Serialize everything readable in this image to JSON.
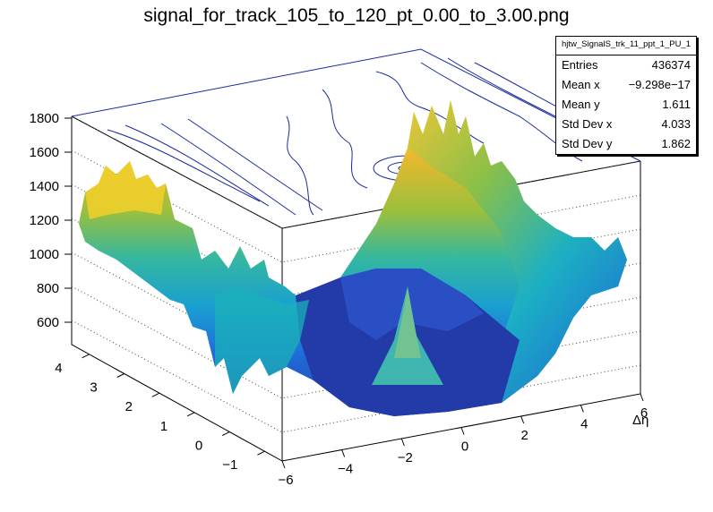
{
  "title": "signal_for_track_105_to_120_pt_0.00_to_3.00.png",
  "stats": {
    "name": "hjtw_SignalS_trk_11_ppt_1_PU_1",
    "rows": [
      {
        "label": "Entries",
        "value": "436374"
      },
      {
        "label": "Mean x",
        "value": "−9.298e−17"
      },
      {
        "label": "Mean y",
        "value": "1.611"
      },
      {
        "label": "Std Dev x",
        "value": "4.033"
      },
      {
        "label": "Std Dev y",
        "value": "1.862"
      }
    ]
  },
  "chart_data": {
    "type": "surface",
    "title": "signal_for_track_105_to_120_pt_0.00_to_3.00.png",
    "xlabel": "Δη",
    "ylabel": "",
    "zlabel": "",
    "xlim": [
      -6,
      6
    ],
    "ylim": [
      -1.5,
      4.5
    ],
    "zlim": [
      450,
      1800
    ],
    "x_ticks": [
      "−6",
      "−4",
      "−2",
      "0",
      "2",
      "4",
      "6"
    ],
    "y_ticks": [
      "−1",
      "0",
      "1",
      "2",
      "3",
      "4"
    ],
    "z_ticks": [
      "600",
      "800",
      "1000",
      "1200",
      "1400",
      "1600",
      "1800"
    ],
    "grid": true,
    "colormap": "parula",
    "contour_on_top": true,
    "description_peak": {
      "x": 0,
      "y": 0,
      "z": 1500
    },
    "profile": {
      "x": [
        -6,
        -4,
        -2,
        0,
        2,
        4,
        6
      ],
      "z_at_far_edge": [
        1350,
        1150,
        800,
        700,
        1000,
        1500,
        1450
      ],
      "z_at_near_edge": [
        1150,
        700,
        600,
        560,
        600,
        700,
        900
      ]
    }
  }
}
